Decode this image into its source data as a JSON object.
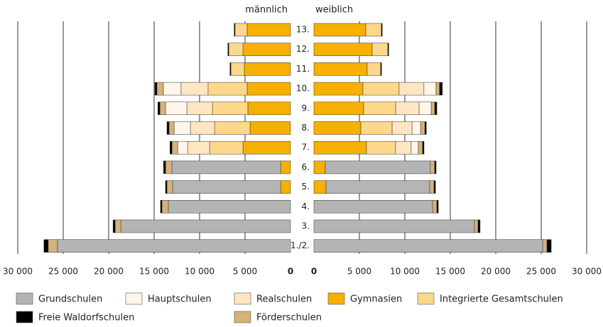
{
  "chart_data": {
    "type": "bar",
    "side_labels": [
      "männlich",
      "weiblich"
    ],
    "categories": [
      "13.",
      "12.",
      "11.",
      "10.",
      "9.",
      "8.",
      "7.",
      "6.",
      "5.",
      "4.",
      "3.",
      "1./2."
    ],
    "xlim": [
      0,
      30000
    ],
    "xticks": [
      0,
      {
        "value": 5000,
        "label": "5 000"
      },
      {
        "value": 10000,
        "label": "10 000"
      },
      {
        "value": 15000,
        "label": "15 000"
      },
      {
        "value": 20000,
        "label": "20 000"
      },
      {
        "value": 25000,
        "label": "25 000"
      },
      {
        "value": 30000,
        "label": "30 000"
      }
    ],
    "grid": true,
    "series": [
      {
        "name": "Gymnasien",
        "color": "#f6b000",
        "male": [
          4770,
          5230,
          5080,
          4770,
          4690,
          4450,
          5230,
          1090,
          1090,
          0,
          0,
          0
        ],
        "female": [
          5700,
          6410,
          5860,
          5390,
          5470,
          5160,
          5780,
          1250,
          1330,
          0,
          0,
          0
        ]
      },
      {
        "name": "Grundschulen",
        "color": "#b4b4b4",
        "male": [
          0,
          0,
          0,
          0,
          0,
          0,
          0,
          11950,
          11880,
          13440,
          18670,
          25630
        ],
        "female": [
          0,
          0,
          0,
          0,
          0,
          0,
          0,
          11560,
          11410,
          13050,
          17660,
          25160
        ]
      },
      {
        "name": "Integrierte Gesamtschulen",
        "color": "#fdd88a",
        "male": [
          1330,
          1560,
          1480,
          4300,
          3900,
          3900,
          3670,
          0,
          0,
          0,
          0,
          0
        ],
        "female": [
          1720,
          1720,
          1480,
          3980,
          3520,
          3440,
          3200,
          0,
          0,
          0,
          0,
          0
        ]
      },
      {
        "name": "Realschulen",
        "color": "#fee6c2",
        "male": [
          0,
          0,
          0,
          2970,
          2810,
          2660,
          2420,
          0,
          0,
          0,
          0,
          0
        ],
        "female": [
          0,
          0,
          0,
          2730,
          2580,
          2190,
          1720,
          0,
          0,
          0,
          0,
          0
        ]
      },
      {
        "name": "Hauptschulen",
        "color": "#fff5e8",
        "male": [
          0,
          0,
          0,
          1950,
          2340,
          1800,
          1090,
          0,
          0,
          0,
          0,
          0
        ],
        "female": [
          0,
          0,
          0,
          1330,
          1330,
          940,
          780,
          0,
          0,
          0,
          0,
          0
        ]
      },
      {
        "name": "Förderschulen",
        "color": "#d4b27a",
        "male": [
          0,
          0,
          0,
          700,
          620,
          550,
          620,
          700,
          620,
          700,
          620,
          1020
        ],
        "female": [
          0,
          0,
          0,
          390,
          390,
          470,
          470,
          470,
          470,
          470,
          390,
          470
        ]
      },
      {
        "name": "Freie Waldorfschulen",
        "color": "#000000",
        "male": [
          100,
          100,
          100,
          230,
          230,
          230,
          230,
          230,
          160,
          160,
          230,
          470
        ],
        "female": [
          100,
          100,
          100,
          310,
          230,
          160,
          160,
          160,
          160,
          160,
          230,
          470
        ]
      }
    ]
  }
}
